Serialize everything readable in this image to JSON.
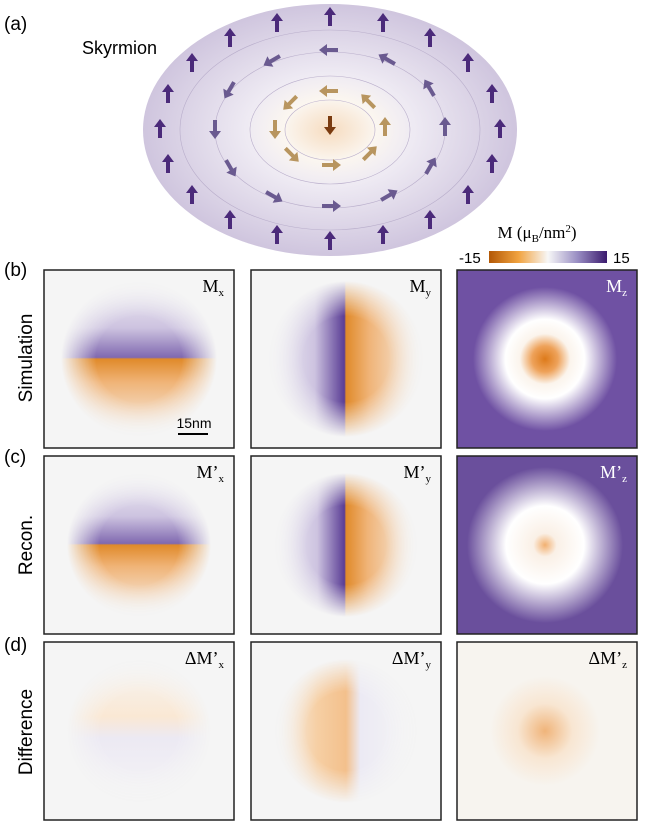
{
  "figure": {
    "panel_a": {
      "label": "(a)",
      "title": "Skyrmion"
    },
    "colorbar": {
      "symbol": "M",
      "unit_open": "(μ",
      "unit_sub": "B",
      "unit_mid": "/nm",
      "unit_sup": "2",
      "unit_close": ")",
      "min": -15,
      "max": 15
    },
    "scale_bar": "15nm",
    "rows": [
      {
        "label": "(b)",
        "name": "Simulation",
        "panels": [
          {
            "main": "M",
            "sub": "x"
          },
          {
            "main": "M",
            "sub": "y"
          },
          {
            "main": "M",
            "sub": "z"
          }
        ]
      },
      {
        "label": "(c)",
        "name": "Recon.",
        "panels": [
          {
            "main": "M’",
            "sub": "x"
          },
          {
            "main": "M’",
            "sub": "y"
          },
          {
            "main": "M’",
            "sub": "z"
          }
        ]
      },
      {
        "label": "(d)",
        "name": "Difference",
        "panels": [
          {
            "main": "ΔM’",
            "sub": "x"
          },
          {
            "main": "ΔM’",
            "sub": "y"
          },
          {
            "main": "ΔM’",
            "sub": "z"
          }
        ]
      }
    ]
  }
}
